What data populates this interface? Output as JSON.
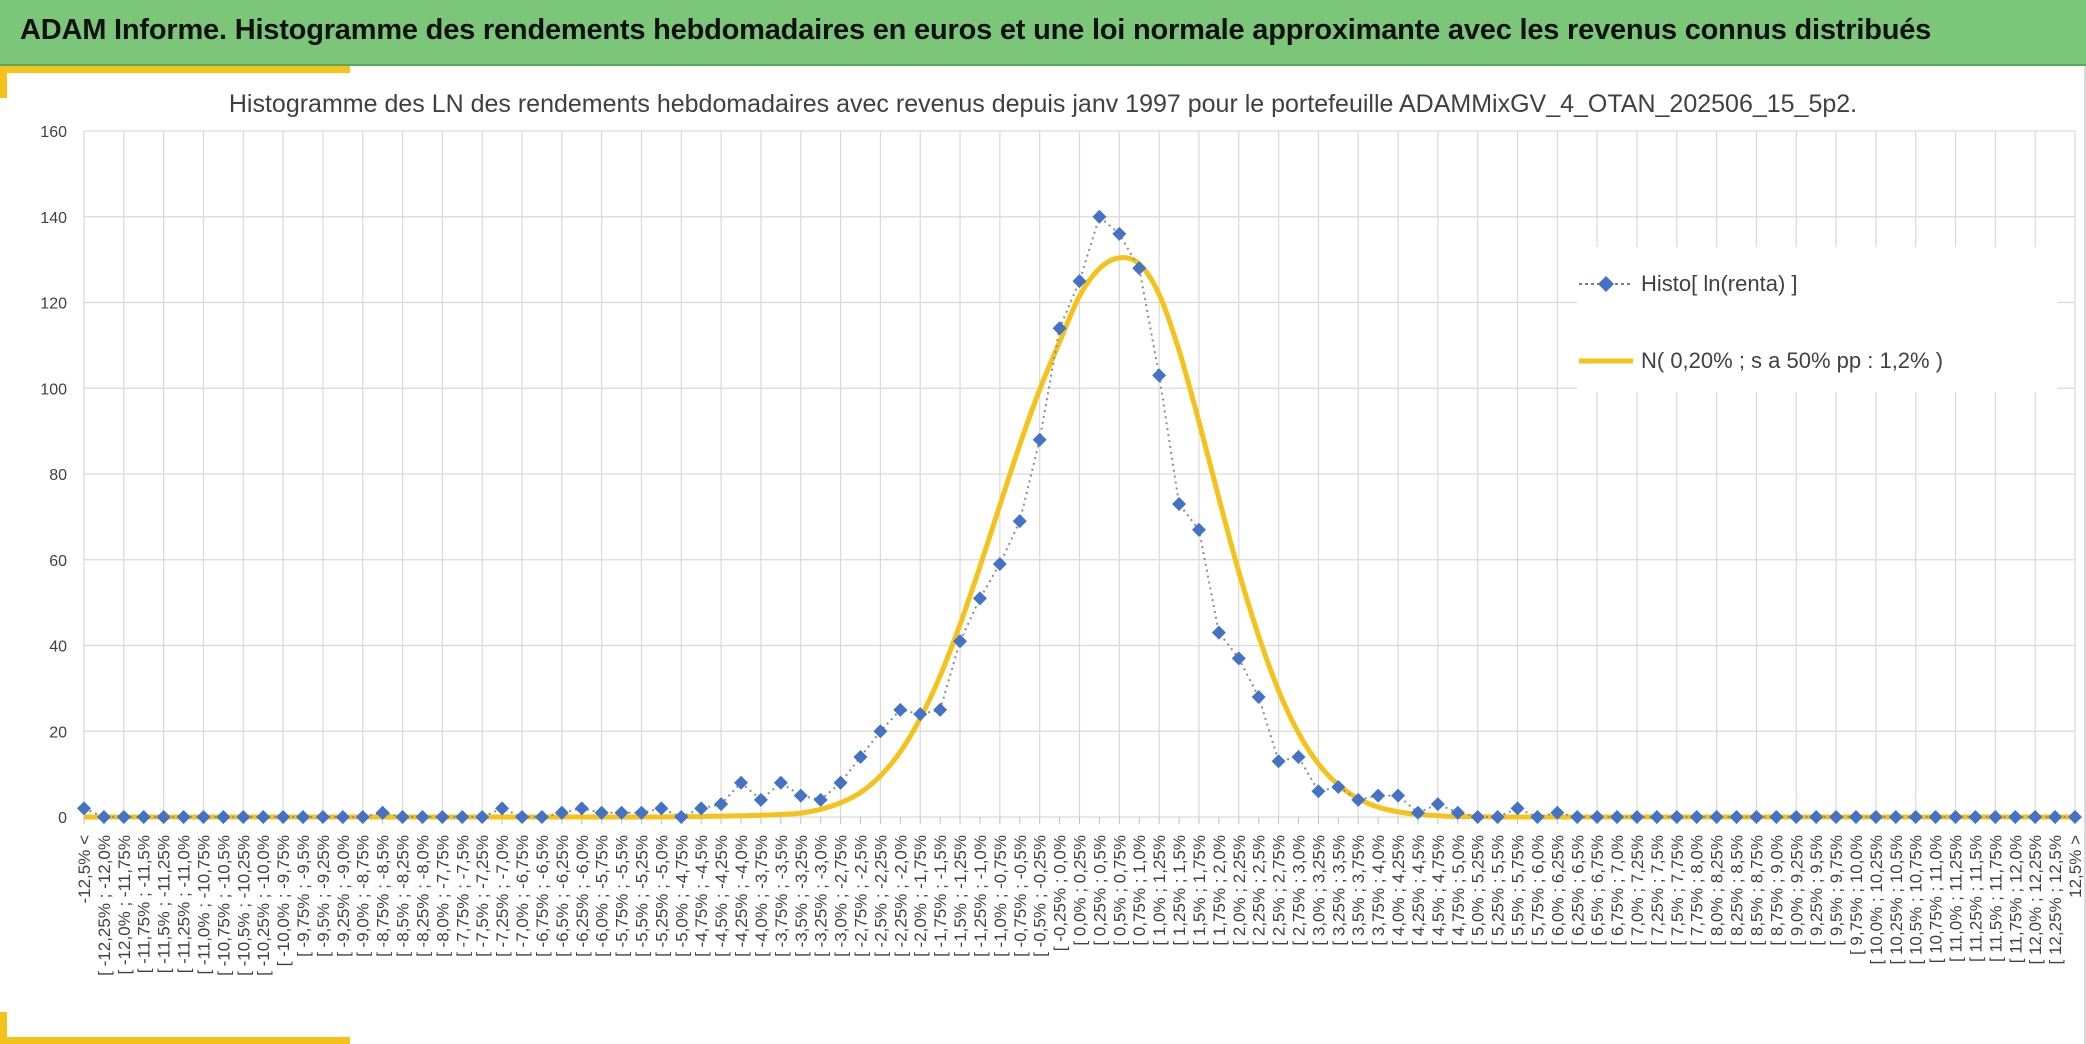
{
  "header": {
    "title": "ADAM Informe. Histogramme des rendements hebdomadaires en euros et une loi normale approximante avec les revenus connus distribués"
  },
  "colors": {
    "header_bg": "#7cc67a",
    "accent": "#f5c21b",
    "histo_series": "#4472c4",
    "normal_series": "#f5c21b",
    "grid": "#d9d9d9"
  },
  "chart_data": {
    "type": "line",
    "title": "Histogramme des LN des rendements hebdomadaires avec revenus depuis janv 1997 pour le portefeuille ADAMMixGV_4_OTAN_202506_15_5p2.",
    "ylim": [
      0,
      160
    ],
    "yticks": [
      0,
      20,
      40,
      60,
      80,
      100,
      120,
      140,
      160
    ],
    "grid": true,
    "legend_position": "right",
    "categories": [
      "-12,5% <",
      "[ -12,25% ; -12,0%",
      "[ -12,0% ; -11,75%",
      "[ -11,75% ; -11,5%",
      "[ -11,5% ; -11,25%",
      "[ -11,25% ; -11,0%",
      "[ -11,0% ; -10,75%",
      "[ -10,75% ; -10,5%",
      "[ -10,5% ; -10,25%",
      "[ -10,25% ; -10,0%",
      "[ -10,0% ; -9,75%",
      "[ -9,75% ; -9,5%",
      "[ -9,5% ; -9,25%",
      "[ -9,25% ; -9,0%",
      "[ -9,0% ; -8,75%",
      "[ -8,75% ; -8,5%",
      "[ -8,5% ; -8,25%",
      "[ -8,25% ; -8,0%",
      "[ -8,0% ; -7,75%",
      "[ -7,75% ; -7,5%",
      "[ -7,5% ; -7,25%",
      "[ -7,25% ; -7,0%",
      "[ -7,0% ; -6,75%",
      "[ -6,75% ; -6,5%",
      "[ -6,5% ; -6,25%",
      "[ -6,25% ; -6,0%",
      "[ -6,0% ; -5,75%",
      "[ -5,75% ; -5,5%",
      "[ -5,5% ; -5,25%",
      "[ -5,25% ; -5,0%",
      "[ -5,0% ; -4,75%",
      "[ -4,75% ; -4,5%",
      "[ -4,5% ; -4,25%",
      "[ -4,25% ; -4,0%",
      "[ -4,0% ; -3,75%",
      "[ -3,75% ; -3,5%",
      "[ -3,5% ; -3,25%",
      "[ -3,25% ; -3,0%",
      "[ -3,0% ; -2,75%",
      "[ -2,75% ; -2,5%",
      "[ -2,5% ; -2,25%",
      "[ -2,25% ; -2,0%",
      "[ -2,0% ; -1,75%",
      "[ -1,75% ; -1,5%",
      "[ -1,5% ; -1,25%",
      "[ -1,25% ; -1,0%",
      "[ -1,0% ; -0,75%",
      "[ -0,75% ; -0,5%",
      "[ -0,5% ; -0,25%",
      "[ -0,25% ; 0,0%",
      "[ 0,0% ; 0,25%",
      "[ 0,25% ; 0,5%",
      "[ 0,5% ; 0,75%",
      "[ 0,75% ; 1,0%",
      "[ 1,0% ; 1,25%",
      "[ 1,25% ; 1,5%",
      "[ 1,5% ; 1,75%",
      "[ 1,75% ; 2,0%",
      "[ 2,0% ; 2,25%",
      "[ 2,25% ; 2,5%",
      "[ 2,5% ; 2,75%",
      "[ 2,75% ; 3,0%",
      "[ 3,0% ; 3,25%",
      "[ 3,25% ; 3,5%",
      "[ 3,5% ; 3,75%",
      "[ 3,75% ; 4,0%",
      "[ 4,0% ; 4,25%",
      "[ 4,25% ; 4,5%",
      "[ 4,5% ; 4,75%",
      "[ 4,75% ; 5,0%",
      "[ 5,0% ; 5,25%",
      "[ 5,25% ; 5,5%",
      "[ 5,5% ; 5,75%",
      "[ 5,75% ; 6,0%",
      "[ 6,0% ; 6,25%",
      "[ 6,25% ; 6,5%",
      "[ 6,5% ; 6,75%",
      "[ 6,75% ; 7,0%",
      "[ 7,0% ; 7,25%",
      "[ 7,25% ; 7,5%",
      "[ 7,5% ; 7,75%",
      "[ 7,75% ; 8,0%",
      "[ 8,0% ; 8,25%",
      "[ 8,25% ; 8,5%",
      "[ 8,5% ; 8,75%",
      "[ 8,75% ; 9,0%",
      "[ 9,0% ; 9,25%",
      "[ 9,25% ; 9,5%",
      "[ 9,5% ; 9,75%",
      "[ 9,75% ; 10,0%",
      "[ 10,0% ; 10,25%",
      "[ 10,25% ; 10,5%",
      "[ 10,5% ; 10,75%",
      "[ 10,75% ; 11,0%",
      "[ 11,0% ; 11,25%",
      "[ 11,25% ; 11,5%",
      "[ 11,5% ; 11,75%",
      "[ 11,75% ; 12,0%",
      "[ 12,0% ; 12,25%",
      "[ 12,25% ; 12,5%",
      "12,5% >"
    ],
    "series": [
      {
        "name": "Histo[ ln(renta) ]",
        "marker": "diamond",
        "line": "dotted",
        "values": [
          2,
          0,
          0,
          0,
          0,
          0,
          0,
          0,
          0,
          0,
          0,
          0,
          0,
          0,
          0,
          1,
          0,
          0,
          0,
          0,
          0,
          2,
          0,
          0,
          1,
          2,
          1,
          1,
          1,
          2,
          0,
          2,
          3,
          8,
          4,
          8,
          5,
          4,
          8,
          14,
          20,
          25,
          24,
          25,
          41,
          51,
          59,
          69,
          88,
          114,
          125,
          140,
          136,
          128,
          103,
          73,
          67,
          43,
          37,
          28,
          13,
          14,
          6,
          7,
          4,
          5,
          5,
          1,
          3,
          1,
          0,
          0,
          2,
          0,
          1,
          0,
          0,
          0,
          0,
          0,
          0,
          0,
          0,
          0,
          0,
          0,
          0,
          0,
          0,
          0,
          0,
          0,
          0,
          0,
          0,
          0,
          0,
          0,
          0,
          0,
          0
        ]
      },
      {
        "name": "N( 0,20% ; s a 50% pp : 1,2% )",
        "line": "solid",
        "values": [
          0,
          0,
          0,
          0,
          0,
          0,
          0,
          0,
          0,
          0,
          0,
          0,
          0,
          0,
          0,
          0,
          0,
          0,
          0,
          0,
          0,
          0,
          0,
          0,
          0,
          0,
          0,
          0,
          0,
          0,
          0.1,
          0.1,
          0.2,
          0.3,
          0.4,
          0.6,
          0.9,
          1.8,
          3.3,
          5.7,
          9.6,
          15.2,
          23.0,
          32.9,
          44.9,
          58.4,
          72.7,
          86.8,
          99.7,
          110.8,
          121.5,
          127.9,
          130.4,
          129.0,
          121.9,
          108.8,
          92.2,
          74.4,
          57.2,
          42.2,
          29.5,
          19.6,
          12.4,
          7.5,
          4.3,
          2.3,
          1.2,
          0.6,
          0.3,
          0.1,
          0.1,
          0,
          0,
          0,
          0,
          0,
          0,
          0,
          0,
          0,
          0,
          0,
          0,
          0,
          0,
          0,
          0,
          0,
          0,
          0,
          0,
          0,
          0,
          0,
          0,
          0,
          0,
          0,
          0,
          0,
          0
        ]
      }
    ]
  }
}
